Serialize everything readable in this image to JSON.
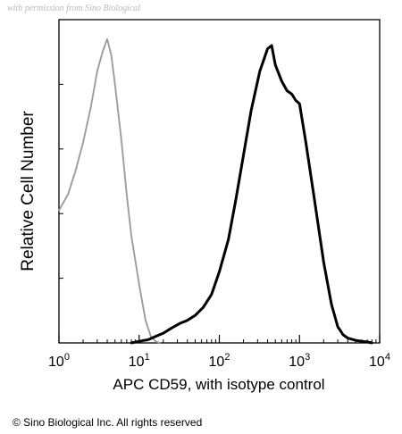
{
  "watermark": "with permission from Sino Biological",
  "copyright": "© Sino Biological Inc. All rights reserved",
  "chart_data": {
    "type": "line",
    "title": "",
    "xlabel": "APC CD59, with isotype control",
    "ylabel": "Relative Cell Number",
    "xscale": "log",
    "xlim": [
      1,
      10000
    ],
    "ylim": [
      0,
      100
    ],
    "x_ticks": [
      {
        "value": 1,
        "base": "10",
        "exp": "0"
      },
      {
        "value": 10,
        "base": "10",
        "exp": "1"
      },
      {
        "value": 100,
        "base": "10",
        "exp": "2"
      },
      {
        "value": 1000,
        "base": "10",
        "exp": "3"
      },
      {
        "value": 10000,
        "base": "10",
        "exp": "4"
      }
    ],
    "y_ticks": [
      0,
      20,
      40,
      60,
      80,
      100
    ],
    "legend": "none",
    "grid": false,
    "series": [
      {
        "color": "#9a9a9a",
        "style": "dotted",
        "x": [
          1,
          1.3,
          1.6,
          2.0,
          2.5,
          3.0,
          3.5,
          4.0,
          4.5,
          5.0,
          6.0,
          7.0,
          8.0,
          10.0,
          12.0,
          14.0,
          16.0,
          18.0
        ],
        "y": [
          41,
          46,
          53,
          62,
          73,
          84,
          90,
          94,
          89,
          80,
          63,
          46,
          33,
          18,
          7,
          2,
          0.5,
          0
        ]
      },
      {
        "color": "#000000",
        "style": "solid",
        "x": [
          8,
          10,
          13,
          16,
          20,
          25,
          32,
          40,
          50,
          63,
          80,
          100,
          130,
          160,
          200,
          250,
          320,
          400,
          450,
          500,
          600,
          700,
          800,
          900,
          1000,
          1200,
          1500,
          2000,
          2500,
          3000,
          3500,
          4000,
          5000,
          6000,
          7000,
          8000
        ],
        "y": [
          0,
          0.5,
          1,
          2,
          3,
          4.5,
          6,
          7,
          8.5,
          11,
          15,
          22,
          32,
          44,
          58,
          72,
          84,
          91,
          92,
          86,
          81,
          78,
          77,
          75,
          74,
          62,
          46,
          25,
          12,
          5,
          2.5,
          1.5,
          0.8,
          0.5,
          0.3,
          0
        ]
      }
    ]
  }
}
